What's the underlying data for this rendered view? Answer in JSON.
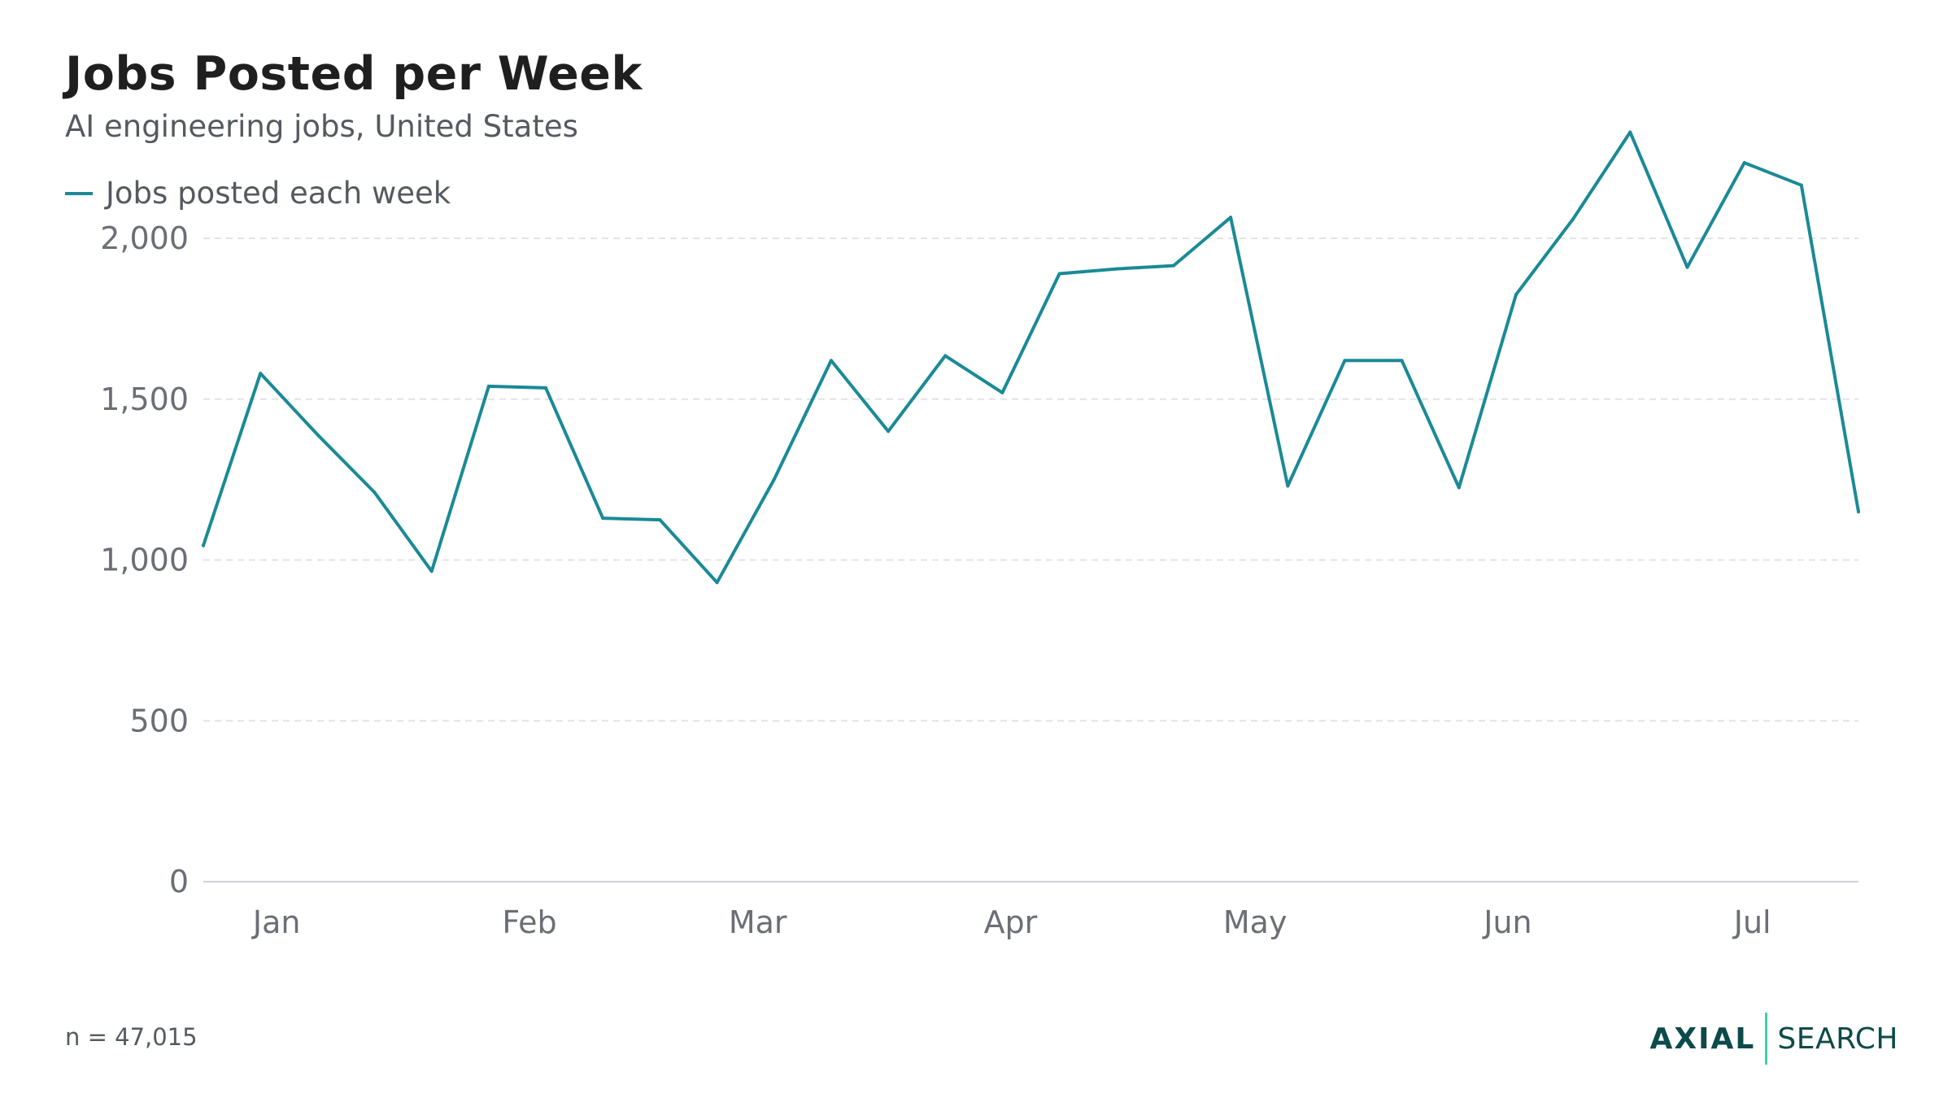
{
  "colors": {
    "series": "#1a8a96",
    "grid": "#e2e4e7",
    "axis": "#cfd2d6",
    "logo_accent": "#3fd0a8"
  },
  "chart_data": {
    "type": "line",
    "title": "Jobs Posted per Week",
    "subtitle": "AI engineering jobs, United States",
    "xlabel": "",
    "ylabel": "",
    "ylim": [
      0,
      2500
    ],
    "y_ticks": [
      0,
      500,
      1000,
      1500,
      2000
    ],
    "y_tick_labels": [
      "0",
      "500",
      "1,000",
      "1,500",
      "2,000"
    ],
    "x_tick_labels": [
      "Jan",
      "Feb",
      "Mar",
      "Apr",
      "May",
      "Jun",
      "Jul"
    ],
    "x_tick_dates": [
      "2025-01-01",
      "2025-02-01",
      "2025-03-01",
      "2025-04-01",
      "2025-05-01",
      "2025-06-01",
      "2025-07-01"
    ],
    "grid": true,
    "legend": "top-left",
    "series": [
      {
        "name": "Jobs posted each week",
        "x": [
          "2024-12-23",
          "2024-12-30",
          "2025-01-06",
          "2025-01-13",
          "2025-01-20",
          "2025-01-27",
          "2025-02-03",
          "2025-02-10",
          "2025-02-17",
          "2025-02-24",
          "2025-03-03",
          "2025-03-10",
          "2025-03-17",
          "2025-03-24",
          "2025-03-31",
          "2025-04-07",
          "2025-04-14",
          "2025-04-21",
          "2025-04-28",
          "2025-05-05",
          "2025-05-12",
          "2025-05-19",
          "2025-05-26",
          "2025-06-02",
          "2025-06-09",
          "2025-06-16",
          "2025-06-23",
          "2025-06-30",
          "2025-07-07",
          "2025-07-14"
        ],
        "values": [
          1045,
          1580,
          1390,
          1210,
          965,
          1540,
          1535,
          1130,
          1125,
          930,
          1250,
          1620,
          1400,
          1635,
          1520,
          1890,
          1905,
          1915,
          2065,
          1230,
          1620,
          1620,
          1225,
          1825,
          2060,
          2330,
          1910,
          2235,
          2165,
          1150
        ]
      }
    ]
  },
  "footnote": "n = 47,015",
  "logo": {
    "primary": "AXIAL",
    "secondary": "SEARCH"
  }
}
